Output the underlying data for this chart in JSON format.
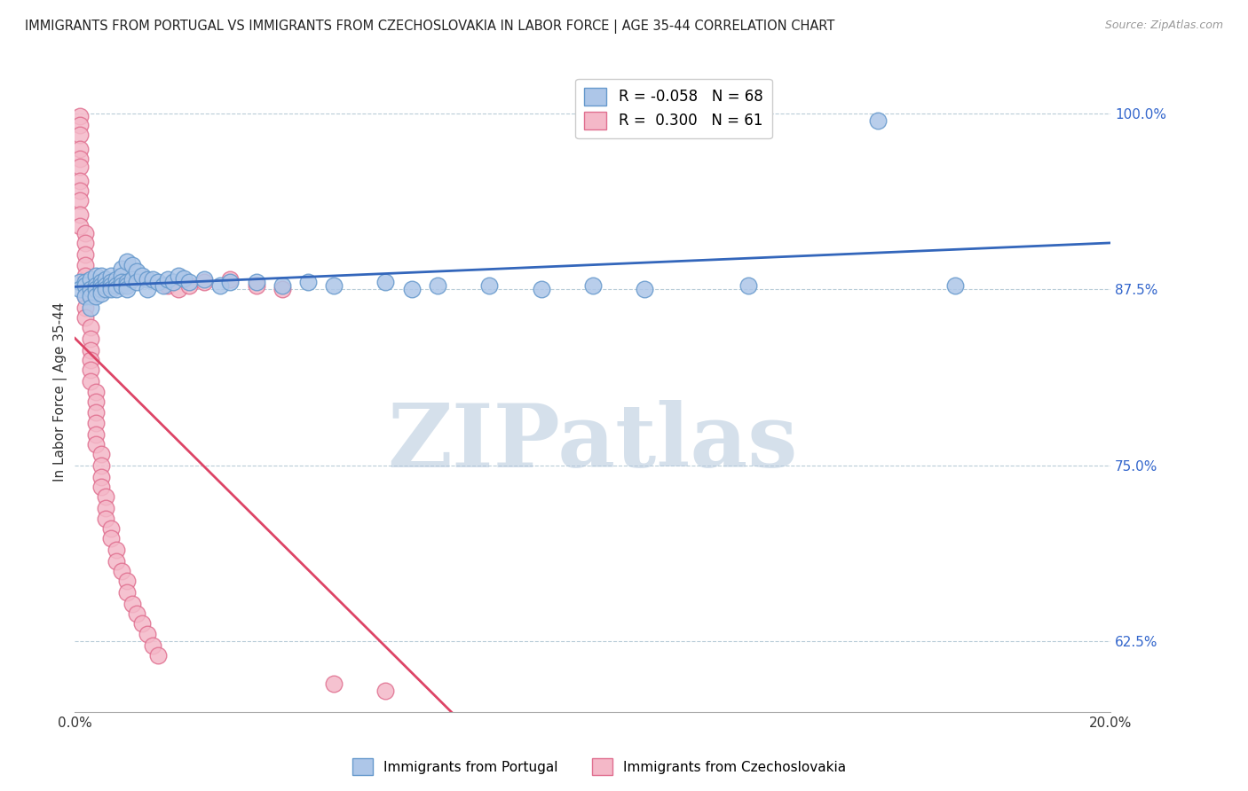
{
  "title": "IMMIGRANTS FROM PORTUGAL VS IMMIGRANTS FROM CZECHOSLOVAKIA IN LABOR FORCE | AGE 35-44 CORRELATION CHART",
  "source": "Source: ZipAtlas.com",
  "ylabel": "In Labor Force | Age 35-44",
  "xmin": 0.0,
  "xmax": 0.2,
  "ymin": 0.575,
  "ymax": 1.03,
  "yticks": [
    0.625,
    0.75,
    0.875,
    1.0
  ],
  "ytick_labels": [
    "62.5%",
    "75.0%",
    "87.5%",
    "100.0%"
  ],
  "xtick_labels": [
    "0.0%",
    "20.0%"
  ],
  "portugal_color": "#adc6e8",
  "portugal_edge": "#6699cc",
  "czechoslovakia_color": "#f4b8c8",
  "czechoslovakia_edge": "#e07090",
  "trend_portugal_color": "#3366bb",
  "trend_czechoslovakia_color": "#dd4466",
  "watermark": "ZIPatlas",
  "watermark_color_r": 180,
  "watermark_color_g": 200,
  "watermark_color_b": 220,
  "portugal_R": -0.058,
  "portugal_N": 68,
  "czechoslovakia_R": 0.3,
  "czechoslovakia_N": 61,
  "legend_label_portugal": "R = -0.058   N = 68",
  "legend_label_czech": "R =  0.300   N = 61",
  "bottom_legend_portugal": "Immigrants from Portugal",
  "bottom_legend_czech": "Immigrants from Czechoslovakia",
  "portugal_points": [
    [
      0.001,
      0.88
    ],
    [
      0.001,
      0.875
    ],
    [
      0.002,
      0.88
    ],
    [
      0.002,
      0.878
    ],
    [
      0.002,
      0.87
    ],
    [
      0.003,
      0.882
    ],
    [
      0.003,
      0.875
    ],
    [
      0.003,
      0.87
    ],
    [
      0.003,
      0.862
    ],
    [
      0.004,
      0.885
    ],
    [
      0.004,
      0.878
    ],
    [
      0.004,
      0.875
    ],
    [
      0.004,
      0.87
    ],
    [
      0.005,
      0.885
    ],
    [
      0.005,
      0.88
    ],
    [
      0.005,
      0.878
    ],
    [
      0.005,
      0.875
    ],
    [
      0.005,
      0.872
    ],
    [
      0.006,
      0.882
    ],
    [
      0.006,
      0.878
    ],
    [
      0.006,
      0.875
    ],
    [
      0.007,
      0.885
    ],
    [
      0.007,
      0.88
    ],
    [
      0.007,
      0.878
    ],
    [
      0.007,
      0.875
    ],
    [
      0.008,
      0.882
    ],
    [
      0.008,
      0.878
    ],
    [
      0.008,
      0.875
    ],
    [
      0.009,
      0.89
    ],
    [
      0.009,
      0.885
    ],
    [
      0.009,
      0.88
    ],
    [
      0.009,
      0.878
    ],
    [
      0.01,
      0.895
    ],
    [
      0.01,
      0.88
    ],
    [
      0.01,
      0.878
    ],
    [
      0.01,
      0.875
    ],
    [
      0.011,
      0.892
    ],
    [
      0.011,
      0.882
    ],
    [
      0.012,
      0.888
    ],
    [
      0.012,
      0.88
    ],
    [
      0.013,
      0.885
    ],
    [
      0.014,
      0.882
    ],
    [
      0.014,
      0.875
    ],
    [
      0.015,
      0.882
    ],
    [
      0.016,
      0.88
    ],
    [
      0.017,
      0.878
    ],
    [
      0.018,
      0.882
    ],
    [
      0.019,
      0.88
    ],
    [
      0.02,
      0.885
    ],
    [
      0.021,
      0.883
    ],
    [
      0.022,
      0.88
    ],
    [
      0.025,
      0.882
    ],
    [
      0.028,
      0.878
    ],
    [
      0.03,
      0.88
    ],
    [
      0.035,
      0.88
    ],
    [
      0.04,
      0.878
    ],
    [
      0.045,
      0.88
    ],
    [
      0.05,
      0.878
    ],
    [
      0.06,
      0.88
    ],
    [
      0.065,
      0.875
    ],
    [
      0.07,
      0.878
    ],
    [
      0.08,
      0.878
    ],
    [
      0.09,
      0.875
    ],
    [
      0.1,
      0.878
    ],
    [
      0.11,
      0.875
    ],
    [
      0.13,
      0.878
    ],
    [
      0.155,
      0.995
    ],
    [
      0.17,
      0.878
    ]
  ],
  "czechoslovakia_points": [
    [
      0.001,
      0.998
    ],
    [
      0.001,
      0.992
    ],
    [
      0.001,
      0.985
    ],
    [
      0.001,
      0.975
    ],
    [
      0.001,
      0.968
    ],
    [
      0.001,
      0.962
    ],
    [
      0.001,
      0.952
    ],
    [
      0.001,
      0.945
    ],
    [
      0.001,
      0.938
    ],
    [
      0.001,
      0.928
    ],
    [
      0.001,
      0.92
    ],
    [
      0.002,
      0.915
    ],
    [
      0.002,
      0.908
    ],
    [
      0.002,
      0.9
    ],
    [
      0.002,
      0.892
    ],
    [
      0.002,
      0.885
    ],
    [
      0.002,
      0.878
    ],
    [
      0.002,
      0.87
    ],
    [
      0.002,
      0.862
    ],
    [
      0.002,
      0.855
    ],
    [
      0.003,
      0.848
    ],
    [
      0.003,
      0.84
    ],
    [
      0.003,
      0.832
    ],
    [
      0.003,
      0.825
    ],
    [
      0.003,
      0.818
    ],
    [
      0.003,
      0.81
    ],
    [
      0.004,
      0.802
    ],
    [
      0.004,
      0.795
    ],
    [
      0.004,
      0.788
    ],
    [
      0.004,
      0.78
    ],
    [
      0.004,
      0.772
    ],
    [
      0.004,
      0.765
    ],
    [
      0.005,
      0.758
    ],
    [
      0.005,
      0.75
    ],
    [
      0.005,
      0.742
    ],
    [
      0.005,
      0.735
    ],
    [
      0.006,
      0.728
    ],
    [
      0.006,
      0.72
    ],
    [
      0.006,
      0.712
    ],
    [
      0.007,
      0.705
    ],
    [
      0.007,
      0.698
    ],
    [
      0.008,
      0.69
    ],
    [
      0.008,
      0.682
    ],
    [
      0.009,
      0.675
    ],
    [
      0.01,
      0.668
    ],
    [
      0.01,
      0.66
    ],
    [
      0.011,
      0.652
    ],
    [
      0.012,
      0.645
    ],
    [
      0.013,
      0.638
    ],
    [
      0.014,
      0.63
    ],
    [
      0.015,
      0.622
    ],
    [
      0.016,
      0.615
    ],
    [
      0.018,
      0.878
    ],
    [
      0.02,
      0.875
    ],
    [
      0.022,
      0.878
    ],
    [
      0.025,
      0.88
    ],
    [
      0.03,
      0.882
    ],
    [
      0.035,
      0.878
    ],
    [
      0.04,
      0.875
    ],
    [
      0.05,
      0.595
    ],
    [
      0.06,
      0.59
    ]
  ],
  "title_fontsize": 10.5,
  "source_fontsize": 9,
  "axis_label_fontsize": 11,
  "tick_fontsize": 11,
  "legend_fontsize": 12,
  "marker_size": 180
}
